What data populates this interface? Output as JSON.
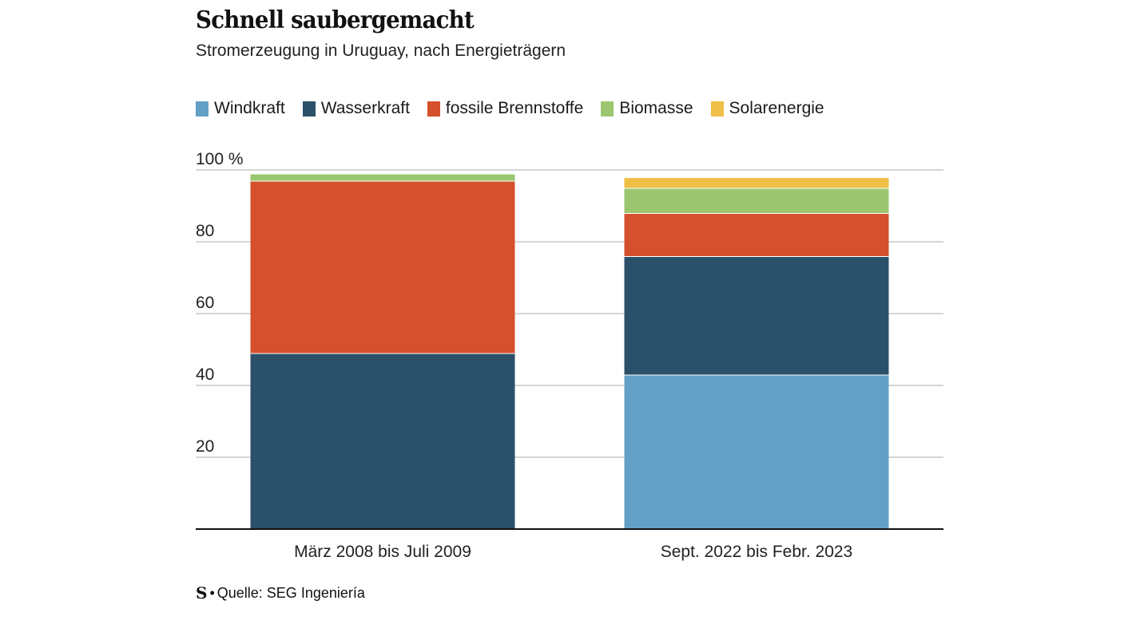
{
  "header": {
    "title": "Schnell saubergemacht",
    "subtitle": "Stromerzeugung in Uruguay, nach Energieträgern"
  },
  "legend": [
    {
      "label": "Windkraft",
      "color": "#62a0c6"
    },
    {
      "label": "Wasserkraft",
      "color": "#2b5069"
    },
    {
      "label": "fossile Brennstoffe",
      "color": "#d5502c"
    },
    {
      "label": "Biomasse",
      "color": "#9bc66f"
    },
    {
      "label": "Solarenergie",
      "color": "#efbf47"
    }
  ],
  "footer": {
    "logo": "S",
    "source": "Quelle: SEG Ingeniería"
  },
  "chart_data": {
    "type": "bar",
    "stacked": true,
    "categories": [
      "März 2008 bis Juli 2009",
      "Sept. 2022 bis Febr. 2023"
    ],
    "series": [
      {
        "name": "Windkraft",
        "color": "#62a0c6",
        "values": [
          0,
          43
        ]
      },
      {
        "name": "Wasserkraft",
        "color": "#2b5069",
        "values": [
          49,
          33
        ]
      },
      {
        "name": "fossile Brennstoffe",
        "color": "#d5502c",
        "values": [
          48,
          12
        ]
      },
      {
        "name": "Biomasse",
        "color": "#9bc66f",
        "values": [
          2,
          7
        ]
      },
      {
        "name": "Solarenergie",
        "color": "#efbf47",
        "values": [
          0,
          3
        ]
      }
    ],
    "ylim": [
      0,
      100
    ],
    "yticks": [
      {
        "value": 20,
        "label": "20"
      },
      {
        "value": 40,
        "label": "40"
      },
      {
        "value": 60,
        "label": "60"
      },
      {
        "value": 80,
        "label": "80"
      },
      {
        "value": 100,
        "label": "100 %"
      }
    ],
    "grid": true
  }
}
